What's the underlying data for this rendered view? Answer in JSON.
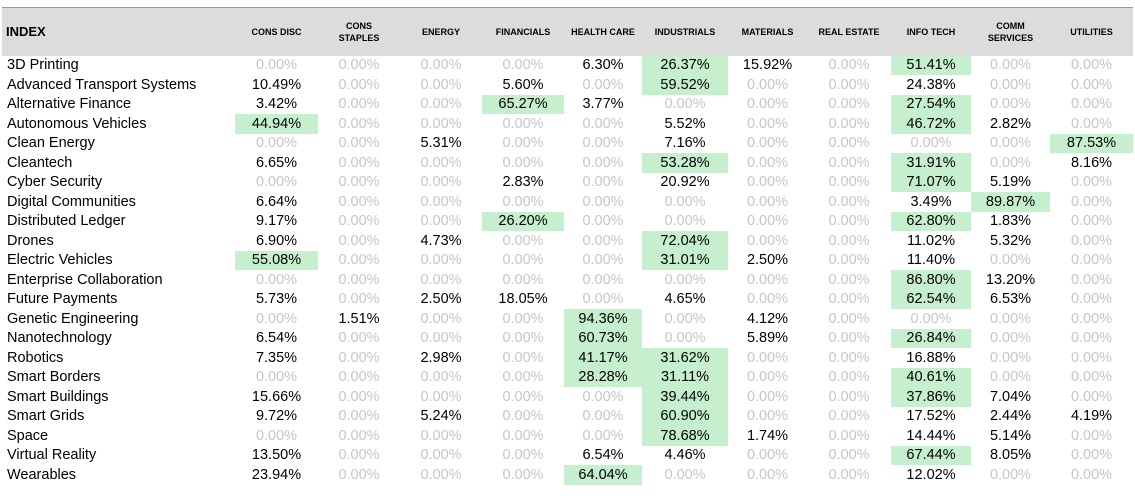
{
  "columns": [
    "INDEX",
    "CONS DISC",
    "CONS\nSTAPLES",
    "ENERGY",
    "FINANCIALS",
    "HEALTH CARE",
    "INDUSTRIALS",
    "MATERIALS",
    "REAL ESTATE",
    "INFO TECH",
    "COMM\nSERVICES",
    "UTILITIES"
  ],
  "highlight_color": "#c6efce",
  "zero_text_color": "#c6c6c6",
  "rows": [
    {
      "name": "3D Printing",
      "values": [
        "0.00%",
        "0.00%",
        "0.00%",
        "0.00%",
        "6.30%",
        "26.37%",
        "15.92%",
        "0.00%",
        "51.41%",
        "0.00%",
        "0.00%"
      ],
      "highlights": [
        5,
        8
      ]
    },
    {
      "name": "Advanced Transport Systems",
      "values": [
        "10.49%",
        "0.00%",
        "0.00%",
        "5.60%",
        "0.00%",
        "59.52%",
        "0.00%",
        "0.00%",
        "24.38%",
        "0.00%",
        "0.00%"
      ],
      "highlights": [
        5
      ]
    },
    {
      "name": "Alternative Finance",
      "values": [
        "3.42%",
        "0.00%",
        "0.00%",
        "65.27%",
        "3.77%",
        "0.00%",
        "0.00%",
        "0.00%",
        "27.54%",
        "0.00%",
        "0.00%"
      ],
      "highlights": [
        3,
        8
      ]
    },
    {
      "name": "Autonomous Vehicles",
      "values": [
        "44.94%",
        "0.00%",
        "0.00%",
        "0.00%",
        "0.00%",
        "5.52%",
        "0.00%",
        "0.00%",
        "46.72%",
        "2.82%",
        "0.00%"
      ],
      "highlights": [
        0,
        8
      ]
    },
    {
      "name": "Clean Energy",
      "values": [
        "0.00%",
        "0.00%",
        "5.31%",
        "0.00%",
        "0.00%",
        "7.16%",
        "0.00%",
        "0.00%",
        "0.00%",
        "0.00%",
        "87.53%"
      ],
      "highlights": [
        10
      ]
    },
    {
      "name": "Cleantech",
      "values": [
        "6.65%",
        "0.00%",
        "0.00%",
        "0.00%",
        "0.00%",
        "53.28%",
        "0.00%",
        "0.00%",
        "31.91%",
        "0.00%",
        "8.16%"
      ],
      "highlights": [
        5,
        8
      ]
    },
    {
      "name": "Cyber Security",
      "values": [
        "0.00%",
        "0.00%",
        "0.00%",
        "2.83%",
        "0.00%",
        "20.92%",
        "0.00%",
        "0.00%",
        "71.07%",
        "5.19%",
        "0.00%"
      ],
      "highlights": [
        8
      ]
    },
    {
      "name": "Digital Communities",
      "values": [
        "6.64%",
        "0.00%",
        "0.00%",
        "0.00%",
        "0.00%",
        "0.00%",
        "0.00%",
        "0.00%",
        "3.49%",
        "89.87%",
        "0.00%"
      ],
      "highlights": [
        9
      ]
    },
    {
      "name": "Distributed Ledger",
      "values": [
        "9.17%",
        "0.00%",
        "0.00%",
        "26.20%",
        "0.00%",
        "0.00%",
        "0.00%",
        "0.00%",
        "62.80%",
        "1.83%",
        "0.00%"
      ],
      "highlights": [
        3,
        8
      ]
    },
    {
      "name": "Drones",
      "values": [
        "6.90%",
        "0.00%",
        "4.73%",
        "0.00%",
        "0.00%",
        "72.04%",
        "0.00%",
        "0.00%",
        "11.02%",
        "5.32%",
        "0.00%"
      ],
      "highlights": [
        5
      ]
    },
    {
      "name": "Electric Vehicles",
      "values": [
        "55.08%",
        "0.00%",
        "0.00%",
        "0.00%",
        "0.00%",
        "31.01%",
        "2.50%",
        "0.00%",
        "11.40%",
        "0.00%",
        "0.00%"
      ],
      "highlights": [
        0,
        5
      ]
    },
    {
      "name": "Enterprise Collaboration",
      "values": [
        "0.00%",
        "0.00%",
        "0.00%",
        "0.00%",
        "0.00%",
        "0.00%",
        "0.00%",
        "0.00%",
        "86.80%",
        "13.20%",
        "0.00%"
      ],
      "highlights": [
        8
      ]
    },
    {
      "name": "Future Payments",
      "values": [
        "5.73%",
        "0.00%",
        "2.50%",
        "18.05%",
        "0.00%",
        "4.65%",
        "0.00%",
        "0.00%",
        "62.54%",
        "6.53%",
        "0.00%"
      ],
      "highlights": [
        8
      ]
    },
    {
      "name": "Genetic Engineering",
      "values": [
        "0.00%",
        "1.51%",
        "0.00%",
        "0.00%",
        "94.36%",
        "0.00%",
        "4.12%",
        "0.00%",
        "0.00%",
        "0.00%",
        "0.00%"
      ],
      "highlights": [
        4
      ]
    },
    {
      "name": "Nanotechnology",
      "values": [
        "6.54%",
        "0.00%",
        "0.00%",
        "0.00%",
        "60.73%",
        "0.00%",
        "5.89%",
        "0.00%",
        "26.84%",
        "0.00%",
        "0.00%"
      ],
      "highlights": [
        4,
        8
      ]
    },
    {
      "name": "Robotics",
      "values": [
        "7.35%",
        "0.00%",
        "2.98%",
        "0.00%",
        "41.17%",
        "31.62%",
        "0.00%",
        "0.00%",
        "16.88%",
        "0.00%",
        "0.00%"
      ],
      "highlights": [
        4,
        5
      ]
    },
    {
      "name": "Smart Borders",
      "values": [
        "0.00%",
        "0.00%",
        "0.00%",
        "0.00%",
        "28.28%",
        "31.11%",
        "0.00%",
        "0.00%",
        "40.61%",
        "0.00%",
        "0.00%"
      ],
      "highlights": [
        4,
        5,
        8
      ]
    },
    {
      "name": "Smart Buildings",
      "values": [
        "15.66%",
        "0.00%",
        "0.00%",
        "0.00%",
        "0.00%",
        "39.44%",
        "0.00%",
        "0.00%",
        "37.86%",
        "7.04%",
        "0.00%"
      ],
      "highlights": [
        5,
        8
      ]
    },
    {
      "name": "Smart Grids",
      "values": [
        "9.72%",
        "0.00%",
        "5.24%",
        "0.00%",
        "0.00%",
        "60.90%",
        "0.00%",
        "0.00%",
        "17.52%",
        "2.44%",
        "4.19%"
      ],
      "highlights": [
        5
      ]
    },
    {
      "name": "Space",
      "values": [
        "0.00%",
        "0.00%",
        "0.00%",
        "0.00%",
        "0.00%",
        "78.68%",
        "1.74%",
        "0.00%",
        "14.44%",
        "5.14%",
        "0.00%"
      ],
      "highlights": [
        5
      ]
    },
    {
      "name": "Virtual Reality",
      "values": [
        "13.50%",
        "0.00%",
        "0.00%",
        "0.00%",
        "6.54%",
        "4.46%",
        "0.00%",
        "0.00%",
        "67.44%",
        "8.05%",
        "0.00%"
      ],
      "highlights": [
        8
      ]
    },
    {
      "name": "Wearables",
      "values": [
        "23.94%",
        "0.00%",
        "0.00%",
        "0.00%",
        "64.04%",
        "0.00%",
        "0.00%",
        "0.00%",
        "12.02%",
        "0.00%",
        "0.00%"
      ],
      "highlights": [
        4
      ]
    }
  ]
}
